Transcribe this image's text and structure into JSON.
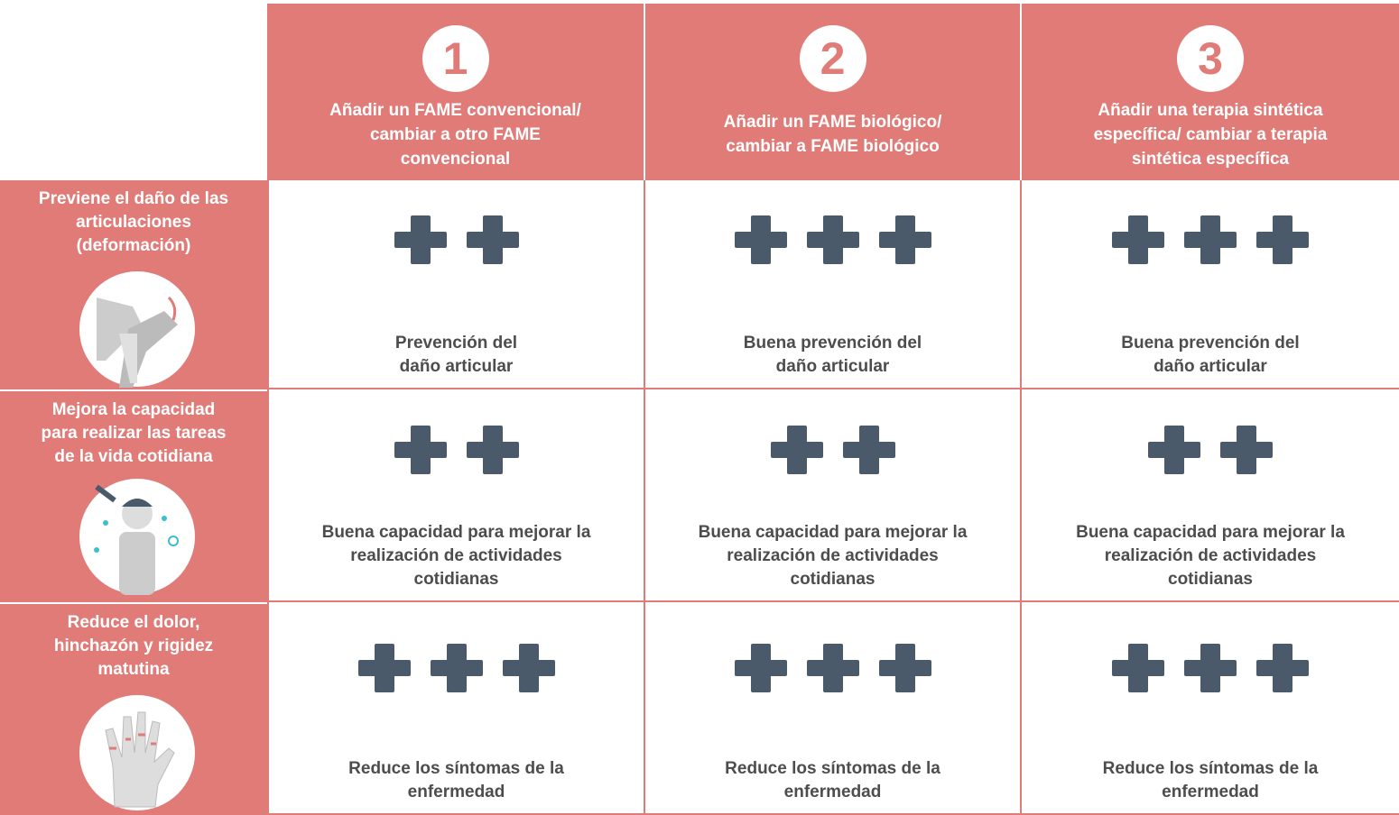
{
  "columns": [
    {
      "number": "1",
      "title": "Añadir un FAME convencional/\ncambiar a otro FAME\nconvencional"
    },
    {
      "number": "2",
      "title": "Añadir un FAME biológico/\ncambiar a FAME biológico"
    },
    {
      "number": "3",
      "title": "Añadir una terapia sintética\nespecífica/ cambiar a terapia\nsintética específica"
    }
  ],
  "rows": [
    {
      "label": "Previene el daño de las\narticulaciones\n(deformación)",
      "cells": [
        {
          "plus": 2,
          "text": "Prevención del\ndaño articular"
        },
        {
          "plus": 3,
          "text": "Buena prevención del\ndaño articular"
        },
        {
          "plus": 3,
          "text": "Buena prevención del\ndaño articular"
        }
      ]
    },
    {
      "label": "Mejora la capacidad\npara realizar las tareas\nde la vida cotidiana",
      "cells": [
        {
          "plus": 2,
          "text": "Buena capacidad para mejorar la\nrealización de actividades\ncotidianas"
        },
        {
          "plus": 2,
          "text": "Buena capacidad para mejorar la\nrealización de actividades\ncotidianas"
        },
        {
          "plus": 2,
          "text": "Buena capacidad para mejorar la\nrealización de actividades\ncotidianas"
        }
      ]
    },
    {
      "label": "Reduce el dolor,\nhinchazón y rigidez\nmatutina",
      "cells": [
        {
          "plus": 3,
          "text": "Reduce los síntomas de la\nenfermedad"
        },
        {
          "plus": 3,
          "text": "Reduce los síntomas de la\nenfermedad"
        },
        {
          "plus": 3,
          "text": "Reduce los síntomas de la\nenfermedad"
        }
      ]
    }
  ]
}
